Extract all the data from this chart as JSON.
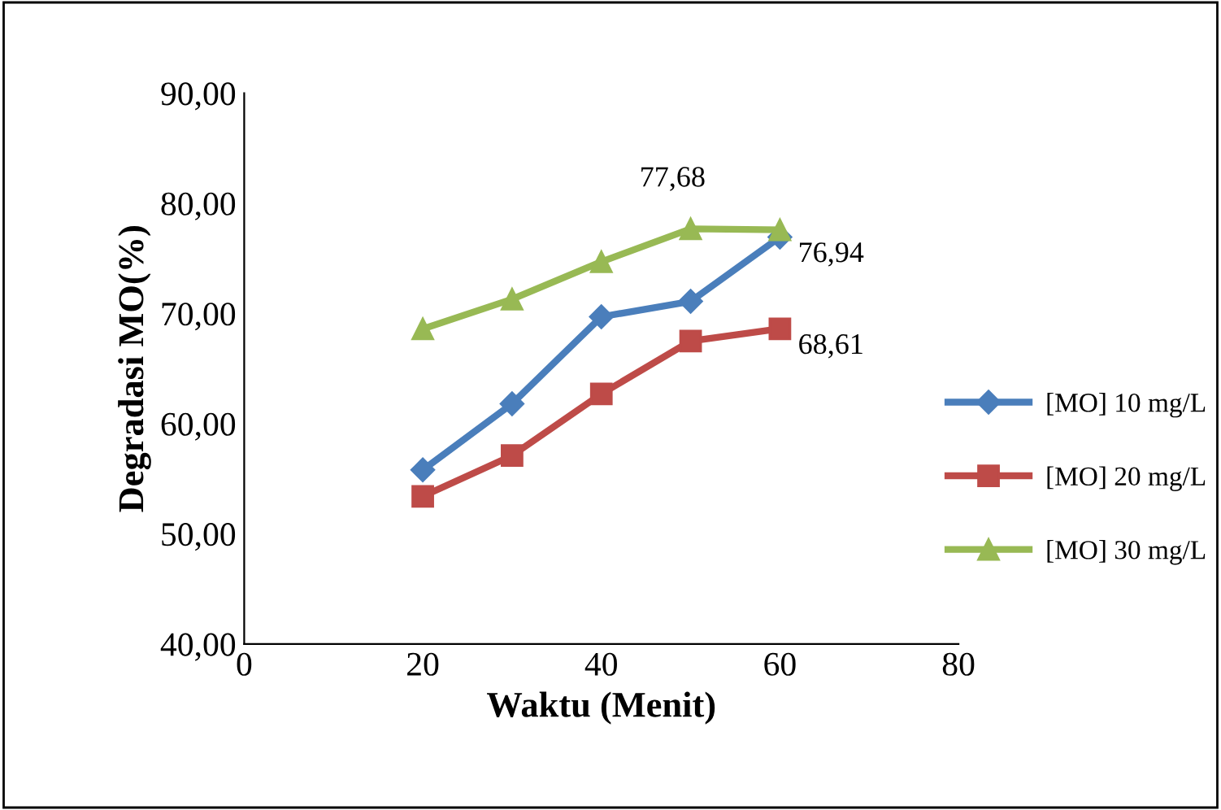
{
  "chart_data": {
    "type": "line",
    "xlabel": "Waktu (Menit)",
    "ylabel": "Degradasi MO(%)",
    "x": [
      20,
      30,
      40,
      50,
      60
    ],
    "series": [
      {
        "name": "[MO] 10 mg/L",
        "color": "#4a7ebb",
        "marker": "diamond",
        "values": [
          55.8,
          61.8,
          69.7,
          71.1,
          76.94
        ],
        "value_labels": [
          null,
          null,
          null,
          null,
          "76,94"
        ]
      },
      {
        "name": "[MO] 20 mg/L",
        "color": "#be4b48",
        "marker": "square",
        "values": [
          53.4,
          57.1,
          62.7,
          67.5,
          68.61
        ],
        "value_labels": [
          null,
          null,
          null,
          null,
          "68,61"
        ]
      },
      {
        "name": "[MO] 30 mg/L",
        "color": "#98b954",
        "marker": "triangle",
        "values": [
          68.6,
          71.3,
          74.7,
          77.68,
          77.6
        ],
        "value_labels": [
          null,
          null,
          null,
          "77,68",
          null
        ]
      }
    ],
    "xlim": [
      0,
      80
    ],
    "xticks": [
      0,
      20,
      40,
      60,
      80
    ],
    "ylim": [
      40,
      90
    ],
    "yticks": [
      {
        "value": 40,
        "label": "40,00"
      },
      {
        "value": 50,
        "label": "50,00"
      },
      {
        "value": 60,
        "label": "60,00"
      },
      {
        "value": 70,
        "label": "70,00"
      },
      {
        "value": 80,
        "label": "80,00"
      },
      {
        "value": 90,
        "label": "90,00"
      }
    ],
    "grid": false,
    "legend": "right",
    "line_style": "solid"
  }
}
